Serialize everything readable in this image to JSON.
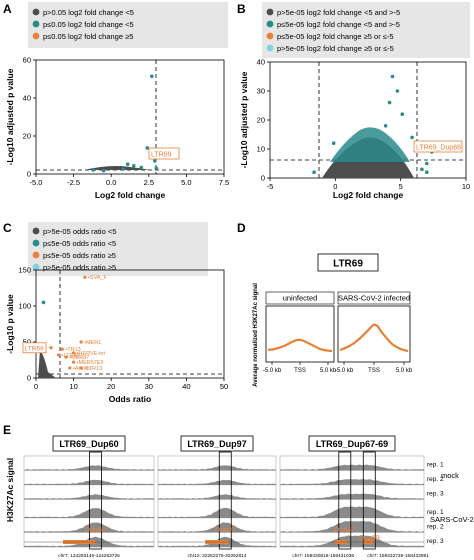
{
  "colors": {
    "grey": "#4d4d4d",
    "teal": "#2a8b8b",
    "orange": "#e8823a",
    "cyan": "#7fd3e0",
    "track_fill": "#8a8a8a",
    "peak": "#e8823a"
  },
  "chart_data": [
    {
      "panel": "A",
      "type": "scatter",
      "xlabel": "Log2 fold change",
      "ylabel": "-Log10 adjusted p value",
      "xlim": [
        -5.0,
        7.5
      ],
      "ylim": [
        0,
        70
      ],
      "xticks": [
        "-5.0",
        "-2.5",
        "0.0",
        "2.5",
        "5.0",
        "7.5"
      ],
      "yticks": [
        "0",
        "20",
        "40",
        "60"
      ],
      "legend": [
        {
          "label": "p>0.05   log2 fold change <5",
          "color": "grey"
        },
        {
          "label": "p≤0.05   log2 fold change <5",
          "color": "teal"
        },
        {
          "label": "p≤0.05   log2 fold change ≥5",
          "color": "orange"
        }
      ],
      "vline": 5.0,
      "hline": 1.3,
      "annotation": "LTR69",
      "highlight_points": [
        {
          "x": 2.7,
          "y": 60
        },
        {
          "x": 2.4,
          "y": 16
        },
        {
          "x": 2.9,
          "y": 8
        },
        {
          "x": 1.5,
          "y": 5
        },
        {
          "x": 0.8,
          "y": 3
        },
        {
          "x": -0.5,
          "y": 2
        },
        {
          "x": 2.0,
          "y": 4
        },
        {
          "x": 1.1,
          "y": 6
        },
        {
          "x": -1.2,
          "y": 2.5
        },
        {
          "x": 3.0,
          "y": 3.5
        }
      ]
    },
    {
      "panel": "B",
      "type": "scatter",
      "xlabel": "Log2 fold change",
      "ylabel": "-Log10 adjusted p value",
      "xlim": [
        -10,
        10
      ],
      "ylim": [
        0,
        40
      ],
      "xticks": [
        "-5",
        "0",
        "5",
        "10"
      ],
      "yticks": [
        "0",
        "10",
        "20",
        "30",
        "40"
      ],
      "legend": [
        {
          "label": "p>5e-05   log2 fold change <5 and >-5",
          "color": "grey"
        },
        {
          "label": "p≤5e-05   log2 fold change <5 and >-5",
          "color": "teal"
        },
        {
          "label": "p≤5e-05   log2 fold change ≥5 or ≤-5",
          "color": "orange"
        },
        {
          "label": "p>5e-05   log2 fold change ≥5 or ≤-5",
          "color": "cyan"
        }
      ],
      "vlines": [
        -5,
        5
      ],
      "hline": 4.3,
      "annotation": "LTR69_Dup68",
      "highlight_points": [
        {
          "x": 2.5,
          "y": 35
        },
        {
          "x": 3.0,
          "y": 30
        },
        {
          "x": 2.2,
          "y": 26
        },
        {
          "x": 3.5,
          "y": 22
        },
        {
          "x": 1.8,
          "y": 18
        },
        {
          "x": -3.5,
          "y": 12
        },
        {
          "x": 4.5,
          "y": 14
        },
        {
          "x": 6.5,
          "y": 9
        },
        {
          "x": 6.0,
          "y": 5
        },
        {
          "x": 5.5,
          "y": 3
        },
        {
          "x": -5.5,
          "y": 2
        },
        {
          "x": 6.0,
          "y": 2
        }
      ]
    },
    {
      "panel": "C",
      "type": "scatter",
      "xlabel": "Odds ratio",
      "ylabel": "-Log10 p value",
      "xlim": [
        0,
        50
      ],
      "ylim": [
        0,
        150
      ],
      "xticks": [
        "0",
        "10",
        "20",
        "30",
        "40",
        "50"
      ],
      "yticks": [
        "0",
        "50",
        "100",
        "150"
      ],
      "legend": [
        {
          "label": "p>5e-05   odds ratio <5",
          "color": "grey"
        },
        {
          "label": "p≤5e-05   odds ratio <5",
          "color": "teal"
        },
        {
          "label": "p≤5e-05   odds ratio ≥5",
          "color": "orange"
        },
        {
          "label": "p>5e-05   odds ratio ≥5",
          "color": "cyan"
        }
      ],
      "vline": 5,
      "hline": 4.3,
      "labeled_points": [
        {
          "label": "SVA_F",
          "x": 13,
          "y": 140
        },
        {
          "label": "MER1",
          "x": 12,
          "y": 50
        },
        {
          "label": "TR13",
          "x": 7,
          "y": 40
        },
        {
          "label": "HERVE-int",
          "x": 10,
          "y": 35
        },
        {
          "label": "MER87",
          "x": 8,
          "y": 29
        },
        {
          "label": "MER57E3",
          "x": 10,
          "y": 22
        },
        {
          "label": "LTR69",
          "x": 4,
          "y": 42
        },
        {
          "label": "LTR46",
          "x": 6,
          "y": 32
        },
        {
          "label": "AIuYb",
          "x": 9,
          "y": 14
        },
        {
          "label": "LTR13",
          "x": 12,
          "y": 14
        }
      ],
      "other_points": [
        {
          "x": 2,
          "y": 105
        }
      ]
    },
    {
      "panel": "D",
      "type": "area",
      "title": "LTR69",
      "ylabel": "Average normalized H3K27Ac signal",
      "facets": [
        "uninfected",
        "SARS-CoV-2 infected"
      ],
      "xticks": [
        "-5.0 kb",
        "TSS",
        "5.0 kb"
      ]
    },
    {
      "panel": "E",
      "type": "area",
      "ylabel": "H3K27Ac signal",
      "regions": [
        {
          "title": "LTR69_Dup60",
          "dup_labels": [
            "Dup60"
          ],
          "coords": [
            "chr7: 124263146-124263726"
          ]
        },
        {
          "title": "LTR69_Dup97",
          "dup_labels": [
            "Dup97"
          ],
          "coords": [
            "chr12: 32252275-32252814"
          ]
        },
        {
          "title": "LTR69_Dup67-69",
          "dup_labels": [
            "Dup67",
            "Dup69"
          ],
          "coords": [
            "chr7: 158430816-158431036",
            "chr7: 158432735-158432891"
          ]
        }
      ],
      "rep_labels": [
        "rep. 1",
        "rep. 2",
        "rep. 3",
        "rep. 1",
        "rep. 2",
        "rep. 3"
      ],
      "group_labels": [
        "mock",
        "SARS-CoV-2"
      ]
    }
  ],
  "panel_letters": [
    "A",
    "B",
    "C",
    "D",
    "E"
  ]
}
